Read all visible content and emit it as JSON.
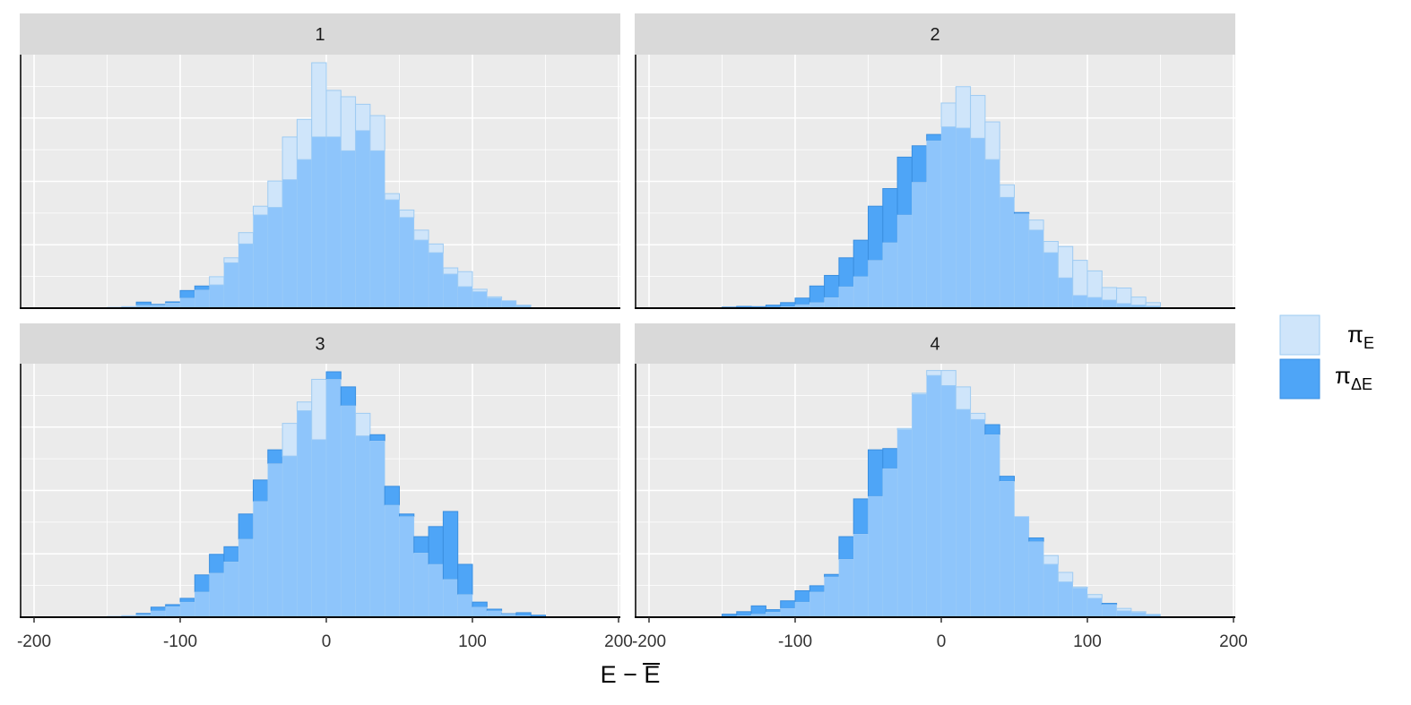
{
  "chart_data": {
    "type": "histogram-facets",
    "xlabel": "E − E̅",
    "ylabel": "",
    "xlim": [
      -200,
      200
    ],
    "x_ticks": [
      -200,
      -100,
      0,
      100,
      200
    ],
    "x_tick_labels": [
      "-200",
      "-100",
      "0",
      "100",
      "200"
    ],
    "y_ticks_shown": false,
    "bin_width": 10,
    "grid": true,
    "legend_position": "right",
    "colors": {
      "panel_bg": "#ebebeb",
      "grid": "#ffffff",
      "strip_bg": "#d9d9d9",
      "pi_E_fill": "#cfe5fa",
      "pi_E_stroke": "#9ecbf2",
      "pi_dE_fill": "#4ea5f7",
      "pi_dE_stroke": "#3b8fe0",
      "overlap_fill": "#8ec5fb"
    },
    "legend": [
      {
        "symbol": "π",
        "sub": "E",
        "series": "pi_E"
      },
      {
        "symbol": "π",
        "sub": "ΔE",
        "series": "pi_dE"
      }
    ],
    "bins_left": [
      -150,
      -140,
      -130,
      -120,
      -110,
      -100,
      -90,
      -80,
      -70,
      -60,
      -50,
      -40,
      -30,
      -20,
      -10,
      0,
      10,
      20,
      30,
      40,
      50,
      60,
      70,
      80,
      90,
      100,
      110,
      120,
      130,
      140
    ],
    "panels": [
      {
        "label": "1",
        "pi_E": [
          0.003,
          0.006,
          0.012,
          0.012,
          0.02,
          0.04,
          0.072,
          0.125,
          0.2,
          0.3,
          0.405,
          0.505,
          0.68,
          0.75,
          0.975,
          0.865,
          0.84,
          0.81,
          0.765,
          0.455,
          0.39,
          0.31,
          0.255,
          0.16,
          0.145,
          0.075,
          0.045,
          0.03,
          0.012,
          0
        ],
        "pi_dE": [
          0,
          0.005,
          0.024,
          0.015,
          0.025,
          0.07,
          0.088,
          0.092,
          0.18,
          0.255,
          0.37,
          0.4,
          0.51,
          0.59,
          0.68,
          0.68,
          0.625,
          0.705,
          0.625,
          0.43,
          0.36,
          0.27,
          0.22,
          0.135,
          0.085,
          0.065,
          0.04,
          0.03,
          0.01,
          0
        ]
      },
      {
        "label": "2",
        "pi_E": [
          0,
          0,
          0.003,
          0.003,
          0.006,
          0.014,
          0.022,
          0.042,
          0.085,
          0.125,
          0.19,
          0.26,
          0.37,
          0.5,
          0.665,
          0.815,
          0.88,
          0.845,
          0.74,
          0.49,
          0.375,
          0.35,
          0.265,
          0.245,
          0.19,
          0.148,
          0.082,
          0.08,
          0.044,
          0.022
        ],
        "pi_dE": [
          0.004,
          0.007,
          0.006,
          0.012,
          0.022,
          0.04,
          0.088,
          0.13,
          0.2,
          0.27,
          0.405,
          0.475,
          0.6,
          0.645,
          0.69,
          0.72,
          0.715,
          0.675,
          0.59,
          0.44,
          0.38,
          0.31,
          0.22,
          0.12,
          0.05,
          0.042,
          0.032,
          0.018,
          0.012,
          0.008
        ]
      },
      {
        "label": "3",
        "pi_E": [
          0.003,
          0.006,
          0.01,
          0.025,
          0.042,
          0.06,
          0.1,
          0.175,
          0.22,
          0.31,
          0.46,
          0.61,
          0.77,
          0.855,
          0.945,
          0.945,
          0.84,
          0.81,
          0.7,
          0.445,
          0.4,
          0.255,
          0.21,
          0.15,
          0.09,
          0.04,
          0.025,
          0.012,
          0.006,
          0
        ],
        "pi_dE": [
          0,
          0.005,
          0.015,
          0.04,
          0.05,
          0.075,
          0.168,
          0.25,
          0.28,
          0.41,
          0.545,
          0.665,
          0.64,
          0.82,
          0.705,
          0.975,
          0.915,
          0.72,
          0.725,
          0.52,
          0.41,
          0.32,
          0.36,
          0.42,
          0.21,
          0.06,
          0.032,
          0.014,
          0.018,
          0.008
        ]
      },
      {
        "label": "4",
        "pi_E": [
          0.003,
          0.006,
          0.012,
          0.02,
          0.035,
          0.06,
          0.1,
          0.16,
          0.23,
          0.33,
          0.48,
          0.59,
          0.75,
          0.89,
          0.98,
          0.98,
          0.915,
          0.81,
          0.725,
          0.54,
          0.4,
          0.3,
          0.245,
          0.178,
          0.12,
          0.09,
          0.05,
          0.035,
          0.022,
          0.012
        ],
        "pi_dE": [
          0.012,
          0.022,
          0.045,
          0.03,
          0.065,
          0.105,
          0.125,
          0.17,
          0.32,
          0.47,
          0.665,
          0.67,
          0.745,
          0.885,
          0.96,
          0.92,
          0.825,
          0.785,
          0.765,
          0.56,
          0.4,
          0.315,
          0.21,
          0.14,
          0.115,
          0.075,
          0.055,
          0.025,
          0.018,
          0.012
        ]
      }
    ]
  }
}
